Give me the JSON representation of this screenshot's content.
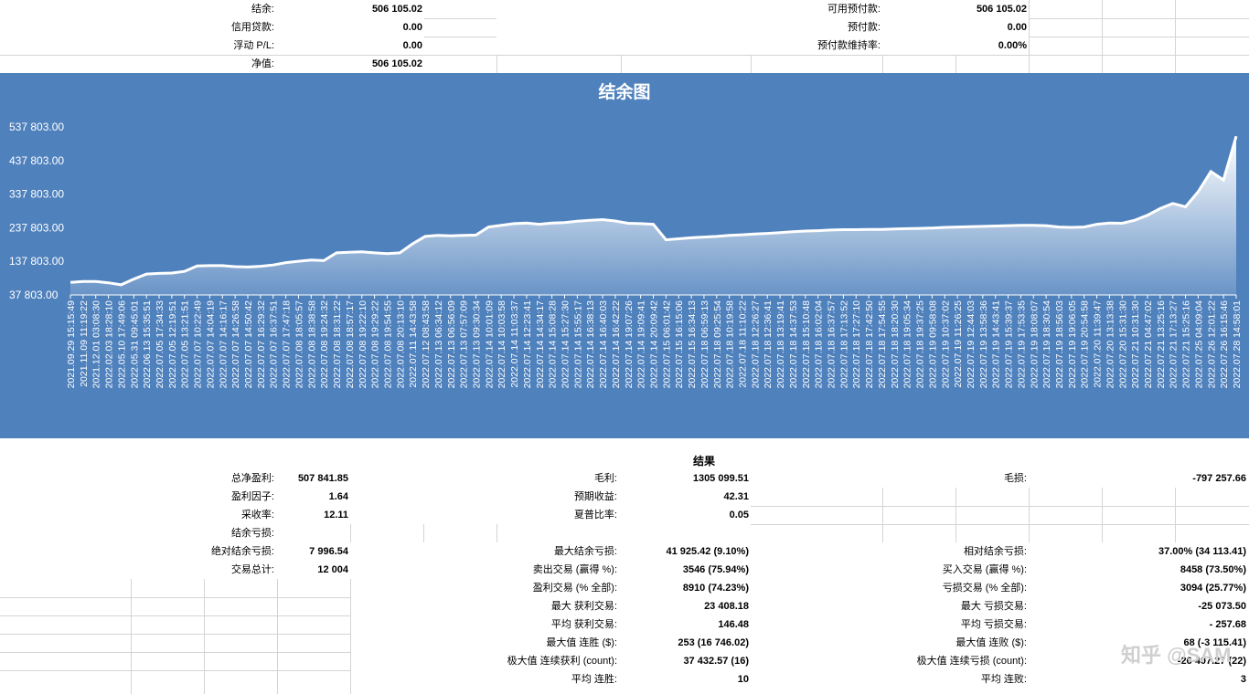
{
  "summary": {
    "balance_label": "结余:",
    "balance": "506 105.02",
    "credit_label": "信用贷款:",
    "credit": "0.00",
    "floating_label": "浮动 P/L:",
    "floating": "0.00",
    "equity_label": "净值:",
    "equity": "506 105.02",
    "free_margin_label": "可用预付款:",
    "free_margin": "506 105.02",
    "margin_label": "预付款:",
    "margin": "0.00",
    "margin_level_label": "预付款维持率:",
    "margin_level": "0.00%"
  },
  "results": {
    "title": "结果",
    "net_profit_label": "总净盈利:",
    "net_profit": "507 841.85",
    "gross_profit_label": "毛利:",
    "gross_profit": "1305 099.51",
    "gross_loss_label": "毛损:",
    "gross_loss": "-797 257.66",
    "profit_factor_label": "盈利因子:",
    "profit_factor": "1.64",
    "expected_payoff_label": "预期收益:",
    "expected_payoff": "42.31",
    "recovery_label": "采收率:",
    "recovery": "12.11",
    "sharpe_label": "夏普比率:",
    "sharpe": "0.05",
    "balance_dd_label": "结余亏损:",
    "abs_dd_label": "绝对结余亏损:",
    "abs_dd": "7 996.54",
    "max_dd_label": "最大结余亏损:",
    "max_dd": "41 925.42 (9.10%)",
    "rel_dd_label": "相对结余亏损:",
    "rel_dd": "37.00% (34 113.41)",
    "total_trades_label": "交易总计:",
    "total_trades": "12 004",
    "short_label": "卖出交易 (赢得 %):",
    "short": "3546 (75.94%)",
    "long_label": "买入交易 (赢得 %):",
    "long": "8458 (73.50%)",
    "profit_trades_label": "盈利交易 (% 全部):",
    "profit_trades": "8910 (74.23%)",
    "loss_trades_label": "亏损交易 (% 全部):",
    "loss_trades": "3094 (25.77%)",
    "largest_profit_label": "最大 获利交易:",
    "largest_profit": "23 408.18",
    "largest_loss_label": "最大 亏损交易:",
    "largest_loss": "-25 073.50",
    "avg_profit_label": "平均 获利交易:",
    "avg_profit": "146.48",
    "avg_loss_label": "平均 亏损交易:",
    "avg_loss": "- 257.68",
    "max_consec_wins_label": "最大值 连胜 ($):",
    "max_consec_wins": "253 (16 746.02)",
    "max_consec_losses_label": "最大值 连败 ($):",
    "max_consec_losses": "68 (-3 115.41)",
    "max_consec_profit_label": "极大值 连续获利 (count):",
    "max_consec_profit": "37 432.57 (16)",
    "max_consec_loss_label": "极大值 连续亏损 (count):",
    "max_consec_loss": "-26 407.27 (22)",
    "avg_consec_wins_label": "平均 连胜:",
    "avg_consec_wins": "10",
    "avg_consec_losses_label": "平均 连败:",
    "avg_consec_losses": "3"
  },
  "watermark": "知乎 @SAM",
  "chart_data": {
    "type": "area",
    "title": "结余图",
    "y_ticks": [
      "537 803.00",
      "437 803.00",
      "337 803.00",
      "237 803.00",
      "137 803.00",
      "37 803.00"
    ],
    "ylim": [
      37803,
      537803
    ],
    "x_labels": [
      "2021.09.29 15:15:49",
      "2021.11.09 11:19:22",
      "2021.12.01 03:08:30",
      "2022.02.03 18:28:10",
      "2022.05.10 17:49:06",
      "2022.05.31 09:45:01",
      "2022.06.13 15:35:51",
      "2022.07.05 17:34:33",
      "2022.07.05 12:19:51",
      "2022.07.05 13:21:51",
      "2022.07.07 10:22:49",
      "2022.07.07 14:04:19",
      "2022.07.07 14:16:17",
      "2022.07.07 14:26:58",
      "2022.07.07 14:50:42",
      "2022.07.07 16:29:32",
      "2022.07.07 16:37:51",
      "2022.07.07 17:47:18",
      "2022.07.08 18:05:57",
      "2022.07.08 18:38:58",
      "2022.07.08 19:24:32",
      "2022.07.08 18:31:22",
      "2022.07.08 18:57:17",
      "2022.07.08 19:22:10",
      "2022.07.08 19:29:22",
      "2022.07.08 19:54:55",
      "2022.07.08 20:13:10",
      "2022.07.11 14:43:58",
      "2022.07.12 08:43:58",
      "2022.07.13 06:34:12",
      "2022.07.13 06:56:09",
      "2022.07.13 07:57:09",
      "2022.07.13 09:30:34",
      "2022.07.14 10:01:09",
      "2022.07.14 10:03:58",
      "2022.07.14 11:03:37",
      "2022.07.14 12:23:41",
      "2022.07.14 14:34:17",
      "2022.07.14 15:08:28",
      "2022.07.14 15:27:30",
      "2022.07.14 15:55:17",
      "2022.07.14 16:38:13",
      "2022.07.14 16:40:03",
      "2022.07.14 16:42:22",
      "2022.07.14 19:07:26",
      "2022.07.14 19:09:41",
      "2022.07.14 20:09:42",
      "2022.07.15 06:01:42",
      "2022.07.15 16:15:06",
      "2022.07.15 16:34:13",
      "2022.07.18 06:59:13",
      "2022.07.18 09:25:54",
      "2022.07.18 10:19:58",
      "2022.07.18 11:10:22",
      "2022.07.18 12:26:27",
      "2022.07.18 12:36:41",
      "2022.07.18 13:19:41",
      "2022.07.18 14:37:53",
      "2022.07.18 15:10:48",
      "2022.07.18 16:02:04",
      "2022.07.18 16:37:57",
      "2022.07.18 17:13:52",
      "2022.07.18 17:27:10",
      "2022.07.18 17:42:50",
      "2022.07.18 17:54:55",
      "2022.07.18 18:20:30",
      "2022.07.18 19:05:34",
      "2022.07.18 19:37:25",
      "2022.07.19 09:58:08",
      "2022.07.19 10:37:02",
      "2022.07.19 11:26:25",
      "2022.07.19 12:44:03",
      "2022.07.19 13:58:36",
      "2022.07.19 14:43:41",
      "2022.07.19 15:39:37",
      "2022.07.19 17:53:35",
      "2022.07.19 18:08:07",
      "2022.07.19 18:30:54",
      "2022.07.19 18:56:03",
      "2022.07.19 19:06:05",
      "2022.07.19 20:54:58",
      "2022.07.20 11:39:47",
      "2022.07.20 13:13:38",
      "2022.07.20 15:31:30",
      "2022.07.21 10:31:30",
      "2022.07.21 04:47:02",
      "2022.07.21 13:25:16",
      "2022.07.21 17:13:27",
      "2022.07.21 15:25:16",
      "2022.07.25 04:09:04",
      "2022.07.26 12:01:22",
      "2022.07.26 16:15:46",
      "2022.07.28 14:58:01"
    ],
    "x": [
      0,
      1,
      2,
      3,
      4,
      5,
      6,
      7,
      8,
      9,
      10,
      11,
      12,
      13,
      14,
      15,
      16,
      17,
      18,
      19,
      20,
      21,
      22,
      23,
      24,
      25,
      26,
      27,
      28,
      29,
      30,
      31,
      32,
      33,
      34,
      35,
      36,
      37,
      38,
      39,
      40,
      41,
      42,
      43,
      44,
      45,
      46,
      47,
      48,
      49,
      50,
      51,
      52,
      53,
      54,
      55,
      56,
      57,
      58,
      59,
      60,
      61,
      62,
      63,
      64,
      65,
      66,
      67,
      68,
      69,
      70,
      71,
      72,
      73,
      74,
      75,
      76,
      77,
      78,
      79,
      80,
      81,
      82,
      83,
      84,
      85,
      86,
      87,
      88,
      89,
      90,
      91,
      92
    ],
    "y": [
      75000,
      78000,
      78000,
      74000,
      68000,
      85000,
      100000,
      102000,
      103000,
      108000,
      124000,
      125000,
      125000,
      122000,
      121000,
      123000,
      127000,
      134000,
      138000,
      142000,
      140000,
      163000,
      165000,
      166000,
      163000,
      161000,
      163000,
      190000,
      212000,
      215000,
      214000,
      215000,
      216000,
      240000,
      245000,
      250000,
      252000,
      248000,
      252000,
      253000,
      257000,
      260000,
      262000,
      258000,
      251000,
      250000,
      248000,
      202000,
      205000,
      208000,
      210000,
      212000,
      215000,
      217000,
      219000,
      221000,
      223000,
      226000,
      228000,
      229000,
      231000,
      232000,
      232000,
      233000,
      233000,
      234000,
      235000,
      236000,
      237000,
      239000,
      240000,
      241000,
      242000,
      243000,
      244000,
      245000,
      245000,
      244000,
      240000,
      239000,
      240000,
      248000,
      252000,
      251000,
      260000,
      275000,
      295000,
      310000,
      300000,
      345000,
      405000,
      380000,
      510000
    ]
  }
}
